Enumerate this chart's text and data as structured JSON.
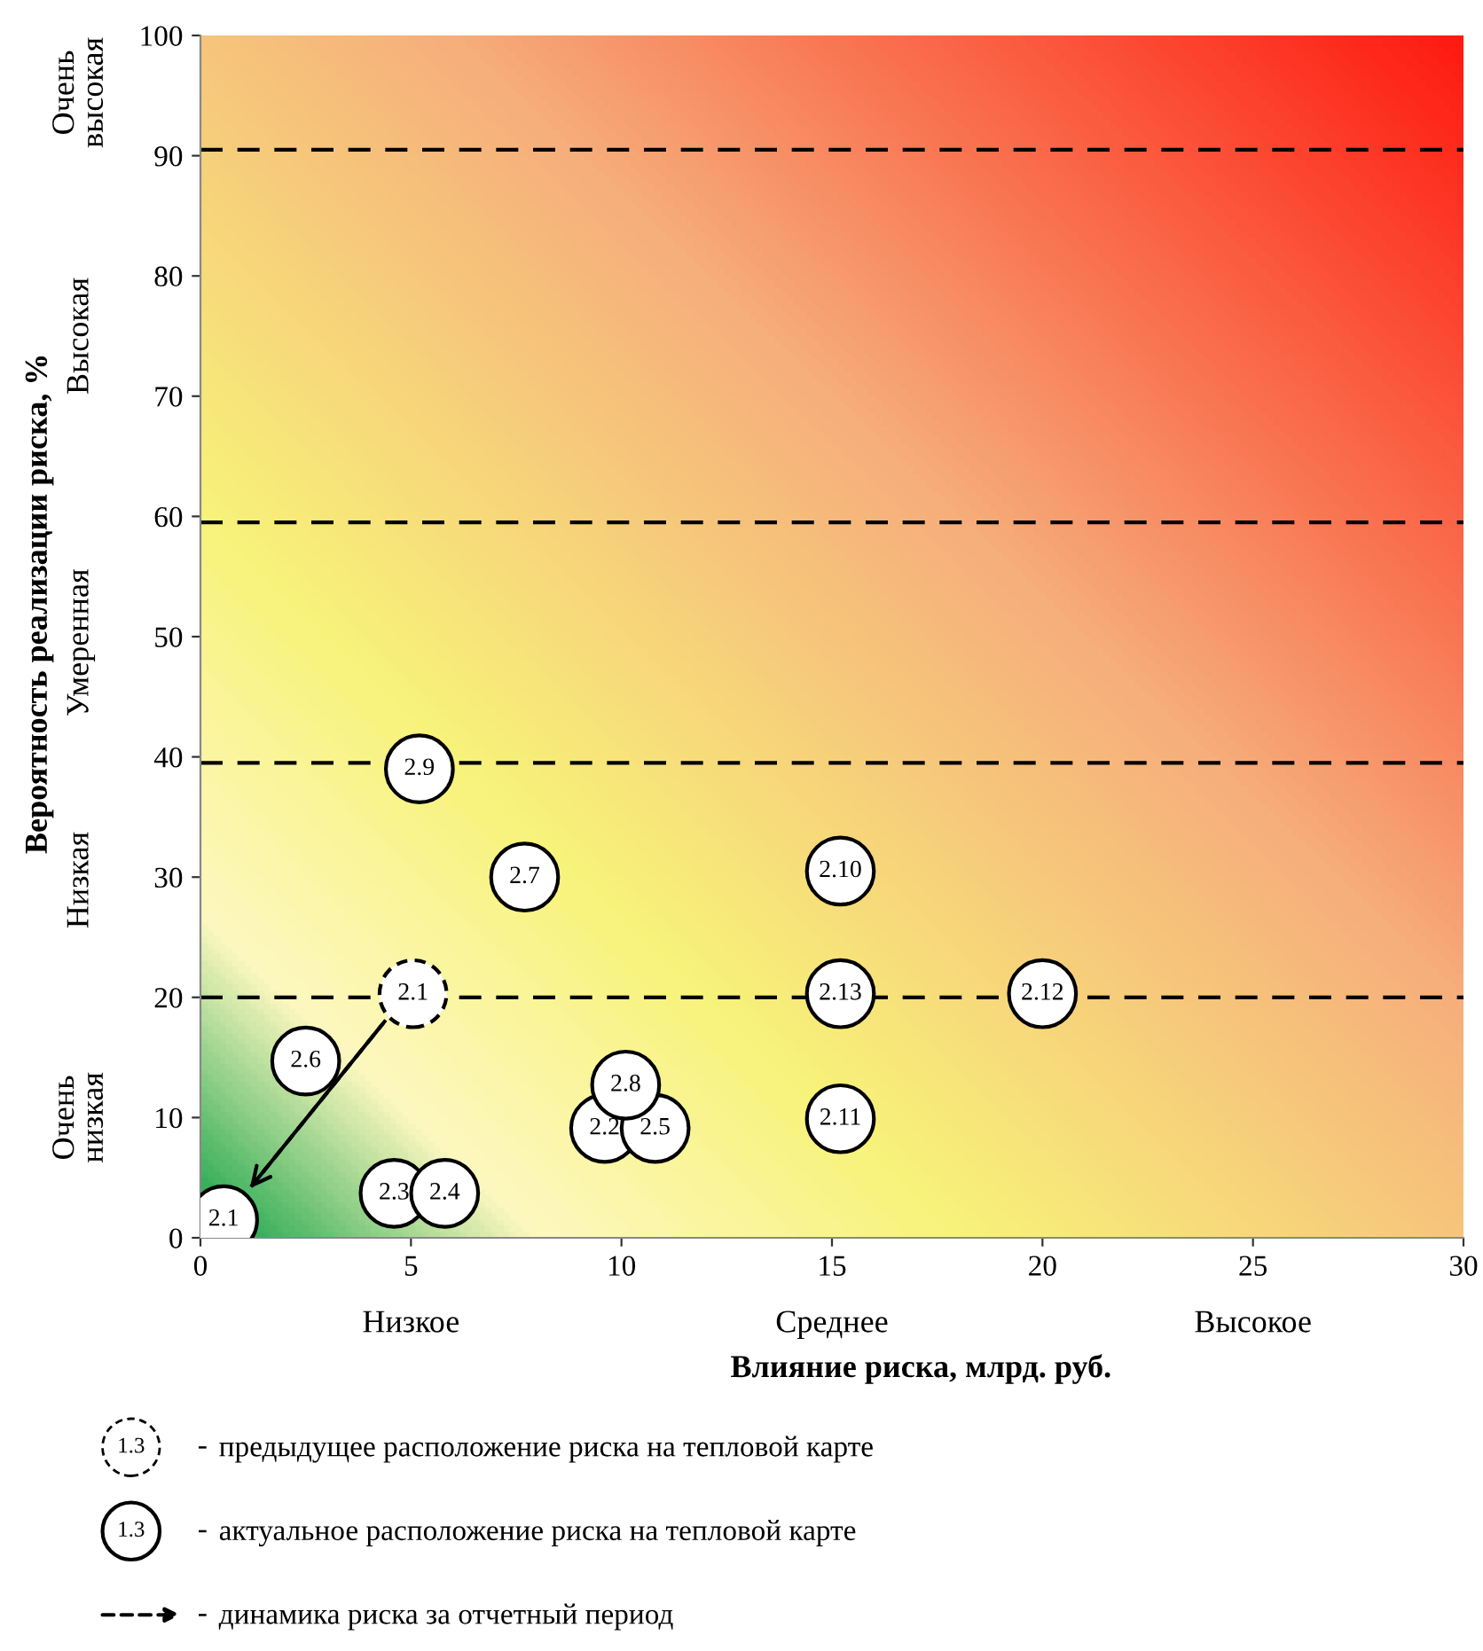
{
  "chart_data": {
    "type": "scatter",
    "xlabel": "Влияние риска, млрд. руб.",
    "ylabel": "Вероятность реализации риска, %",
    "xlim": [
      0,
      30
    ],
    "ylim": [
      0,
      100
    ],
    "xticks": [
      0,
      5,
      10,
      15,
      20,
      25,
      30
    ],
    "yticks": [
      0,
      10,
      20,
      30,
      40,
      50,
      60,
      70,
      80,
      90,
      100
    ],
    "grid": false,
    "legend": "bottom",
    "marker": "circle",
    "ref_lines": [
      {
        "axis": "y",
        "value": 20,
        "color": "#000000",
        "line_style": "dashed"
      },
      {
        "axis": "y",
        "value": 39.5,
        "color": "#000000",
        "line_style": "dashed"
      },
      {
        "axis": "y",
        "value": 59.5,
        "color": "#000000",
        "line_style": "dashed"
      },
      {
        "axis": "y",
        "value": 90.5,
        "color": "#000000",
        "line_style": "dashed"
      }
    ],
    "annotations": [
      "Очень\nнизкая",
      "Низкая",
      "Умеренная",
      "Высокая",
      "Очень\nвысокая",
      "Низкое",
      "Среднее",
      "Высокое",
      "1.3",
      "-",
      {
        "text": "2.1",
        "x": 5.05,
        "y": 20.3
      },
      {
        "text": "2.1",
        "x": 0.55,
        "y": 1.5
      },
      {
        "text": "2.2",
        "x": 9.6,
        "y": 9.1
      },
      {
        "text": "2.3",
        "x": 4.6,
        "y": 3.7
      },
      {
        "text": "2.4",
        "x": 5.8,
        "y": 3.7
      },
      {
        "text": "2.5",
        "x": 10.8,
        "y": 9.1
      },
      {
        "text": "2.6",
        "x": 2.5,
        "y": 14.7
      },
      {
        "text": "2.7",
        "x": 7.7,
        "y": 30
      },
      {
        "text": "2.8",
        "x": 10.1,
        "y": 12.7
      },
      {
        "text": "2.9",
        "x": 5.2,
        "y": 39
      },
      {
        "text": "2.10",
        "x": 15.2,
        "y": 30.5
      },
      {
        "text": "2.11",
        "x": 15.2,
        "y": 9.9
      },
      {
        "text": "2.12",
        "x": 20,
        "y": 20.3
      },
      {
        "text": "2.13",
        "x": 15.2,
        "y": 20.3
      }
    ],
    "series": [
      {
        "name": "предыдущее расположение риска на тепловой карте",
        "type": "scatter",
        "line_style": "dashed",
        "color": "#000000",
        "x": [
          5.05
        ],
        "values": [
          20.3
        ]
      },
      {
        "name": "актуальное расположение риска на тепловой карте",
        "line_style": "solid",
        "color": "#000000",
        "x": [
          0.55,
          9.6,
          4.6,
          5.8,
          10.8,
          2.5,
          7.7,
          10.1,
          5.2,
          15.2,
          15.2,
          20,
          15.2
        ],
        "values": [
          1.5,
          9.1,
          3.7,
          3.7,
          9.1,
          14.7,
          30,
          12.7,
          39,
          30.5,
          9.9,
          20.3,
          20.3
        ]
      },
      {
        "name": "динамика риска за отчетный период",
        "type": "line",
        "marker": "none",
        "line_style": "dashed",
        "color": "#000000",
        "x": [
          4.4,
          1.1
        ],
        "values": [
          18.1,
          3.8
        ]
      }
    ]
  }
}
